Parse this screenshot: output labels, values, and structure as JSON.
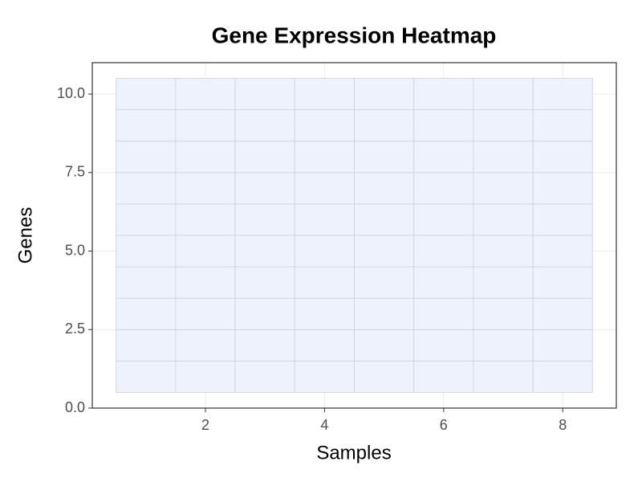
{
  "chart_data": {
    "type": "heatmap",
    "title": "Gene Expression Heatmap",
    "x_label": "Samples",
    "y_label": "Genes",
    "x": [
      1,
      2,
      3,
      4,
      5,
      6,
      7,
      8
    ],
    "y": [
      1,
      2,
      3,
      4,
      5,
      6,
      7,
      8,
      9,
      10
    ],
    "color": "#eef2fd",
    "xlim": [
      0.1,
      8.9
    ],
    "xticks": [
      2,
      4,
      6,
      8
    ],
    "ylim": [
      0,
      11
    ],
    "yticks": [
      {
        "value": 0,
        "label": "0.0"
      },
      2.5,
      {
        "value": 5,
        "label": "5.0"
      },
      7.5,
      {
        "value": 10,
        "label": "10.0"
      }
    ],
    "grid": true
  }
}
